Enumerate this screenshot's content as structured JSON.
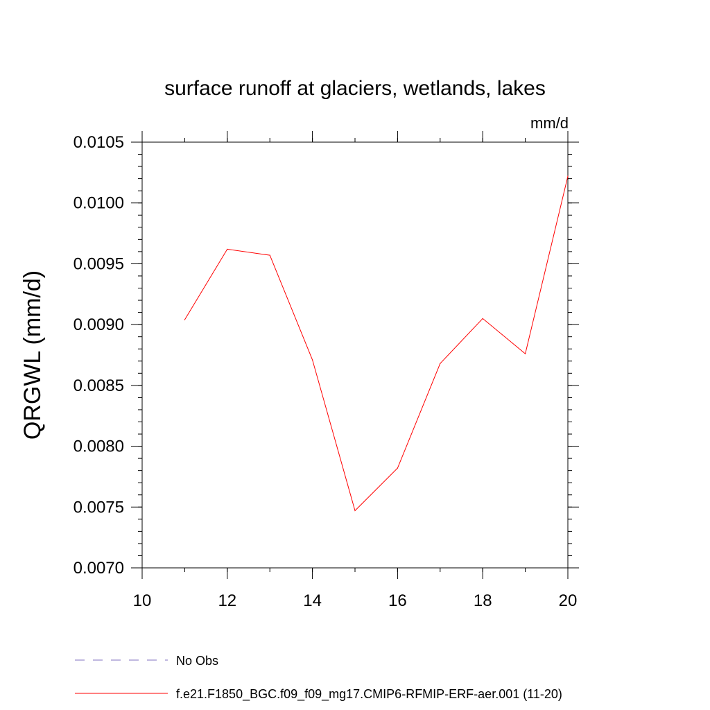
{
  "chart_data": {
    "type": "line",
    "title": "surface runoff at glaciers, wetlands, lakes",
    "units": "mm/d",
    "xlabel": "",
    "ylabel": "QRGWL  (mm/d)",
    "xlim": [
      10,
      20
    ],
    "ylim": [
      0.007,
      0.0105
    ],
    "x_ticks": [
      10,
      12,
      14,
      16,
      18,
      20
    ],
    "x_tick_labels": [
      "10",
      "12",
      "14",
      "16",
      "18",
      "20"
    ],
    "y_ticks": [
      0.007,
      0.0075,
      0.008,
      0.0085,
      0.009,
      0.0095,
      0.01,
      0.0105
    ],
    "y_tick_labels": [
      "0.0070",
      "0.0075",
      "0.0080",
      "0.0085",
      "0.0090",
      "0.0095",
      "0.0100",
      "0.0105"
    ],
    "grid": false,
    "legend_position": "bottom",
    "series": [
      {
        "name": "f.e21.F1850_BGC.f09_f09_mg17.CMIP6-RFMIP-ERF-aer.001 (11-20)",
        "color": "#ff0000",
        "dash": "solid",
        "x": [
          11,
          12,
          13,
          14,
          15,
          16,
          17,
          18,
          19,
          20
        ],
        "y": [
          0.00904,
          0.00962,
          0.00957,
          0.00871,
          0.00747,
          0.00782,
          0.00868,
          0.00905,
          0.00876,
          0.01022
        ]
      }
    ],
    "legend": [
      {
        "label": "No Obs",
        "color": "#8070c0",
        "dash": "dashed"
      },
      {
        "label": "f.e21.F1850_BGC.f09_f09_mg17.CMIP6-RFMIP-ERF-aer.001 (11-20)",
        "color": "#ff0000",
        "dash": "solid"
      }
    ]
  }
}
